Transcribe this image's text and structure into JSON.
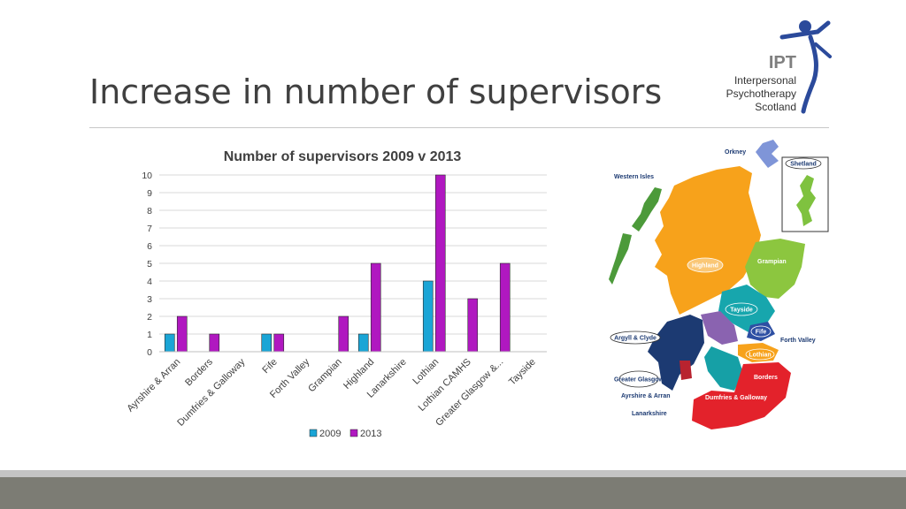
{
  "slide": {
    "title": "Increase in number of supervisors"
  },
  "logo": {
    "abbr": "IPT",
    "lines": [
      "Interpersonal",
      "Psychotherapy",
      "Scotland"
    ],
    "icon": "person-figure-icon",
    "colors": {
      "figure": "#2b4a9b",
      "text": "#7f7f7f"
    }
  },
  "chart_data": {
    "type": "bar",
    "title": "Number of supervisors 2009 v 2013",
    "categories": [
      "Ayrshire & Arran",
      "Borders",
      "Dumfries & Galloway",
      "Fife",
      "Forth Valley",
      "Grampian",
      "Highland",
      "Lanarkshire",
      "Lothian",
      "Lothian CAMHS",
      "Greater Glasgow &...",
      "Tayside"
    ],
    "series": [
      {
        "name": "2009",
        "color": "#1aa5d6",
        "values": [
          1,
          0,
          0,
          1,
          0,
          0,
          1,
          0,
          4,
          0,
          0,
          0
        ]
      },
      {
        "name": "2013",
        "color": "#b018c0",
        "values": [
          2,
          1,
          0,
          1,
          0,
          2,
          5,
          0,
          10,
          3,
          5,
          0
        ]
      }
    ],
    "ylim": [
      0,
      10
    ],
    "yticks": [
      "0",
      "1",
      "2",
      "3",
      "4",
      "5",
      "6",
      "7",
      "8",
      "9",
      "10"
    ],
    "grid": true,
    "legend": "bottom"
  },
  "map": {
    "regions": [
      {
        "label": "Orkney",
        "color": "#7f95d8"
      },
      {
        "label": "Shetland",
        "color": "#7fc23f"
      },
      {
        "label": "Western Isles",
        "color": "#4c9a3a"
      },
      {
        "label": "Highland",
        "color": "#f7a21b"
      },
      {
        "label": "Grampian",
        "color": "#8cc63f"
      },
      {
        "label": "Tayside",
        "color": "#17a6ad"
      },
      {
        "label": "Fife",
        "color": "#2d4fa3"
      },
      {
        "label": "Forth Valley",
        "color": "#8a63b0"
      },
      {
        "label": "Argyll & Clyde",
        "color": "#1c3a72"
      },
      {
        "label": "Lothian",
        "color": "#f7a21b"
      },
      {
        "label": "Greater Glasgow",
        "color": "#b8232f"
      },
      {
        "label": "Ayrshire & Arran",
        "color": "#16a0a6"
      },
      {
        "label": "Lanarkshire",
        "color": "#16a0a6"
      },
      {
        "label": "Borders",
        "color": "#e3222b"
      },
      {
        "label": "Dumfries & Galloway",
        "color": "#e3222b"
      }
    ]
  }
}
